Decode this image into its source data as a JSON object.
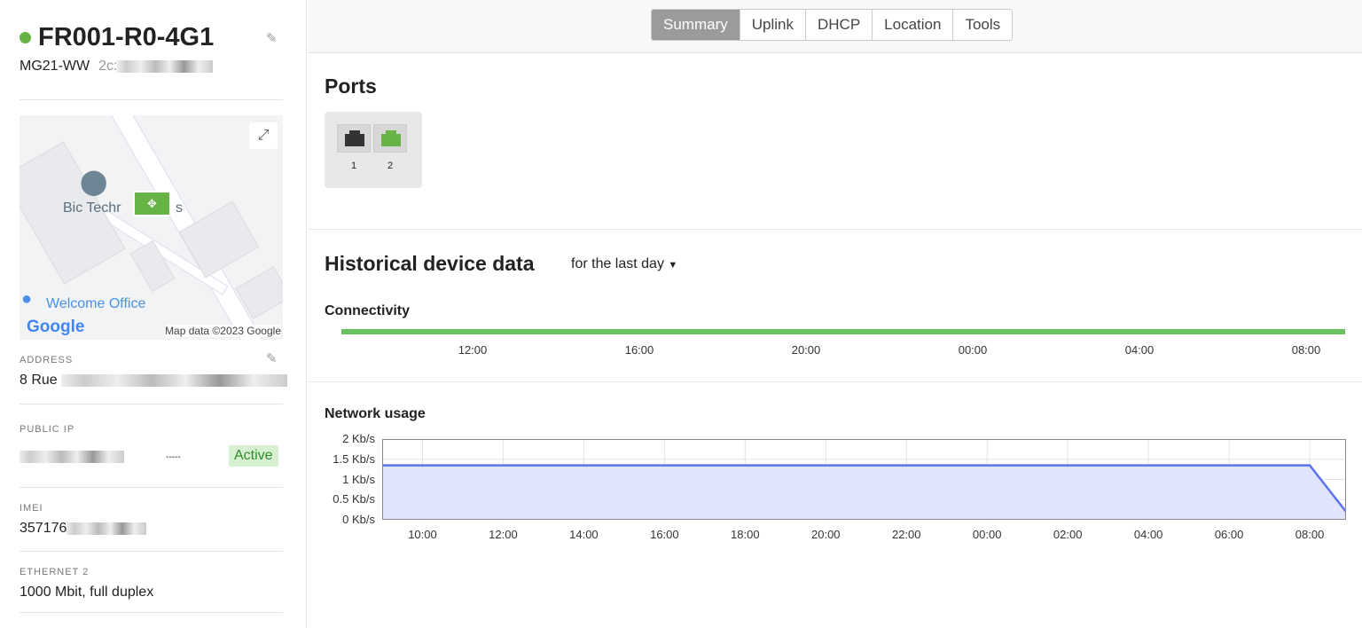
{
  "device": {
    "name": "FR001-R0-4G1",
    "status_color": "#67b346",
    "model": "MG21-WW",
    "mac_prefix": "2c:"
  },
  "map": {
    "place_label": "Bic Techr",
    "place_suffix": "s",
    "office_label": "Welcome Office",
    "logo": "Google",
    "attribution": "Map data ©2023 Google"
  },
  "fields": {
    "address": {
      "label": "ADDRESS",
      "value": "8 Rue"
    },
    "public_ip": {
      "label": "PUBLIC IP",
      "value": "-----",
      "status": "Active"
    },
    "imei": {
      "label": "IMEI",
      "value": "357176"
    },
    "ethernet": {
      "label": "ETHERNET 2",
      "value": "1000 Mbit, full duplex"
    }
  },
  "tabs": [
    "Summary",
    "Uplink",
    "DHCP",
    "Location",
    "Tools"
  ],
  "active_tab": "Summary",
  "ports": {
    "title": "Ports",
    "items": [
      {
        "label": "1",
        "color": "#333333"
      },
      {
        "label": "2",
        "color": "#67b346"
      }
    ]
  },
  "historical": {
    "title": "Historical device data",
    "range": "for the last day"
  },
  "connectivity": {
    "title": "Connectivity",
    "color": "#67c25f",
    "ticks": [
      "12:00",
      "16:00",
      "20:00",
      "00:00",
      "04:00",
      "08:00"
    ]
  },
  "chart_data": {
    "type": "area",
    "title": "Network usage",
    "yticks": [
      "0 Kb/s",
      "0.5 Kb/s",
      "1 Kb/s",
      "1.5 Kb/s",
      "2 Kb/s"
    ],
    "ylim": [
      0,
      2
    ],
    "xticks": [
      "10:00",
      "12:00",
      "14:00",
      "16:00",
      "18:00",
      "20:00",
      "22:00",
      "00:00",
      "02:00",
      "04:00",
      "06:00",
      "08:00"
    ],
    "x_hours": [
      9.0,
      32.0,
      32.9
    ],
    "values": [
      1.35,
      1.35,
      0.2
    ],
    "xlim_hours": [
      9.0,
      32.9
    ],
    "grid": true,
    "line_color": "#5b72f0",
    "fill_color": "#dde2fb"
  }
}
